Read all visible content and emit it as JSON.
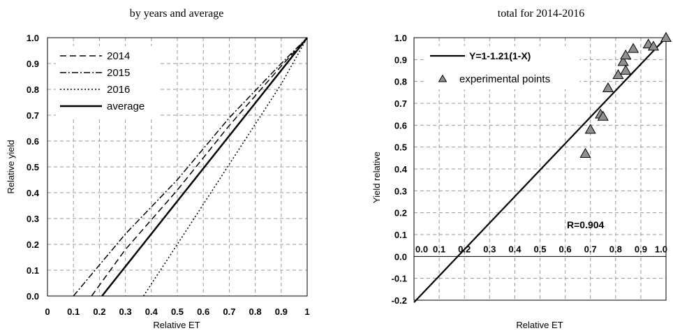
{
  "chart_data": [
    {
      "type": "line",
      "title": "by years and average",
      "xlabel": "Relative ET",
      "ylabel": "Relative yield",
      "xlim": [
        0,
        1
      ],
      "ylim": [
        0,
        1
      ],
      "grid": true,
      "legend": "top-left",
      "x_ticks": [
        "0",
        "0.1",
        "0.2",
        "0.3",
        "0.4",
        "0.5",
        "0.6",
        "0.7",
        "0.8",
        "0.9",
        "1"
      ],
      "y_ticks": [
        "0.0",
        "0.1",
        "0.2",
        "0.3",
        "0.4",
        "0.5",
        "0.6",
        "0.7",
        "0.8",
        "0.9",
        "1.0"
      ],
      "series": [
        {
          "name": "2014",
          "style": "dashed",
          "points": [
            [
              0.17,
              0.0
            ],
            [
              0.3,
              0.18
            ],
            [
              0.5,
              0.41
            ],
            [
              0.7,
              0.66
            ],
            [
              0.9,
              0.89
            ],
            [
              1.0,
              1.0
            ]
          ]
        },
        {
          "name": "2015",
          "style": "dashdot",
          "points": [
            [
              0.1,
              0.0
            ],
            [
              0.3,
              0.24
            ],
            [
              0.5,
              0.45
            ],
            [
              0.7,
              0.69
            ],
            [
              0.9,
              0.9
            ],
            [
              1.0,
              1.0
            ]
          ]
        },
        {
          "name": "2016",
          "style": "dotted",
          "points": [
            [
              0.37,
              0.0
            ],
            [
              0.5,
              0.2
            ],
            [
              0.7,
              0.51
            ],
            [
              0.9,
              0.82
            ],
            [
              1.0,
              1.0
            ]
          ]
        },
        {
          "name": "average",
          "style": "solid",
          "points": [
            [
              0.21,
              0.0
            ],
            [
              1.0,
              1.0
            ]
          ]
        }
      ]
    },
    {
      "type": "scatter",
      "title": "total for 2014-2016",
      "xlabel": "Relative ET",
      "ylabel": "Yield relative",
      "xlim": [
        0,
        1
      ],
      "ylim": [
        -0.2,
        1
      ],
      "grid": true,
      "legend": "top-left",
      "x_ticks": [
        "0.0",
        "0.1",
        "0.2",
        "0.3",
        "0.4",
        "0.5",
        "0.6",
        "0.7",
        "0.8",
        "0.9",
        "1.0"
      ],
      "y_ticks": [
        "-0.2",
        "-0.1",
        "0.0",
        "0.1",
        "0.2",
        "0.3",
        "0.4",
        "0.5",
        "0.6",
        "0.7",
        "0.8",
        "0.9",
        "1.0"
      ],
      "fit_line": {
        "name": "Y=1-1.21(1-X)",
        "points": [
          [
            0.0,
            -0.21
          ],
          [
            1.0,
            1.0
          ]
        ]
      },
      "series": [
        {
          "name": "experimental points",
          "marker": "triangle",
          "color": "#909090",
          "points": [
            [
              0.68,
              0.47
            ],
            [
              0.7,
              0.58
            ],
            [
              0.74,
              0.65
            ],
            [
              0.75,
              0.64
            ],
            [
              0.77,
              0.77
            ],
            [
              0.81,
              0.83
            ],
            [
              0.83,
              0.89
            ],
            [
              0.84,
              0.85
            ],
            [
              0.84,
              0.92
            ],
            [
              0.87,
              0.95
            ],
            [
              0.93,
              0.97
            ],
            [
              0.95,
              0.96
            ],
            [
              1.0,
              1.0
            ]
          ]
        }
      ],
      "annotation": "R=0.904"
    }
  ]
}
